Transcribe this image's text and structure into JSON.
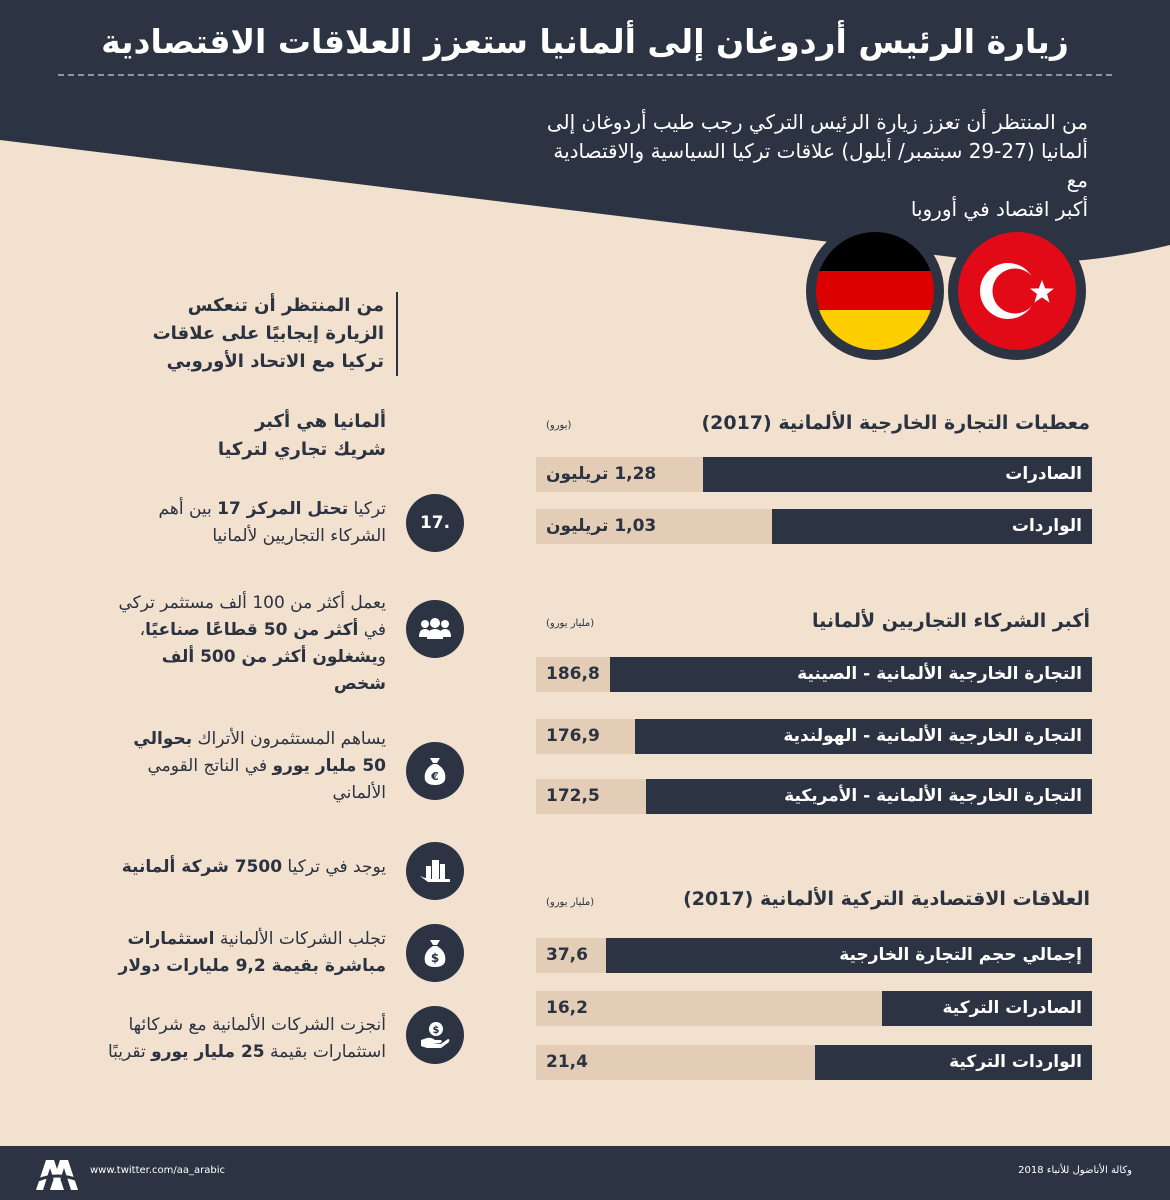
{
  "header": {
    "title": "زيارة الرئيس أردوغان إلى ألمانيا ستعزز العلاقات الاقتصادية",
    "intro_lines": [
      "من المنتظر أن تعزز زيارة الرئيس التركي رجب طيب أردوغان إلى",
      "ألمانيا (27-29 سبتمبر/ أيلول) علاقات تركيا السياسية والاقتصادية مع",
      "أكبر اقتصاد في أوروبا"
    ]
  },
  "flags": {
    "turkey": "turkey-flag-icon",
    "germany": "germany-flag-icon"
  },
  "callout": {
    "lines": [
      "من المنتظر أن تنعكس",
      "الزيارة إيجابيًا على علاقات",
      "تركيا مع الاتحاد الأوروبي"
    ]
  },
  "trade_2017": {
    "title": "معطيات التجارة الخارجية الألمانية (2017)",
    "unit": "(يورو)",
    "bars": [
      {
        "label": "الصادرات",
        "value": "1,28 تريليون",
        "fill": 0.7
      },
      {
        "label": "الواردات",
        "value": "1,03 تريليون",
        "fill": 0.576
      }
    ]
  },
  "partners": {
    "title": "أكبر الشركاء التجاريين لألمانيا",
    "unit": "(مليار يورو)",
    "bars": [
      {
        "label": "التجارة الخارجية الألمانية - الصينية",
        "value": "186,8",
        "fill": 0.867
      },
      {
        "label": "التجارة الخارجية الألمانية - الهولندية",
        "value": "176,9",
        "fill": 0.822
      },
      {
        "label": "التجارة الخارجية الألمانية - الأمريكية",
        "value": "172,5",
        "fill": 0.802
      }
    ]
  },
  "relations": {
    "title": "العلاقات الاقتصادية التركية الألمانية (2017)",
    "unit": "(مليار يورو)",
    "bars": [
      {
        "label": "إجمالي حجم التجارة الخارجية",
        "value": "37,6",
        "fill": 0.874
      },
      {
        "label": "الصادرات التركية",
        "value": "16,2",
        "fill": 0.378
      },
      {
        "label": "الواردات التركية",
        "value": "21,4",
        "fill": 0.498
      }
    ]
  },
  "left_heading": {
    "lines": [
      "ألمانيا هي أكبر",
      "شريك تجاري لتركيا"
    ]
  },
  "facts": {
    "rank_badge": "17.",
    "f1": {
      "a": "تركيا ",
      "b": "تحتل المركز 17",
      "c": " بين أهم الشركاء التجاريين لألمانيا"
    },
    "f2": {
      "a": "يعمل أكثر من 100 ألف مستثمر تركي في ",
      "b": "أكثر من 50 قطاعًا صناعيًا",
      "c": "، و",
      "d": "يشغلون أكثر من 500 ألف شخص"
    },
    "f3": {
      "a": "يساهم المستثمرون الأتراك ",
      "b": "بحوالي 50 مليار يورو",
      "c": " في الناتج القومي الألماني"
    },
    "f4": {
      "a": "يوجد في تركيا ",
      "b": "7500 شركة ألمانية"
    },
    "f5": {
      "a": "تجلب الشركات الألمانية ",
      "b": "استثمارات مباشرة بقيمة 9,2 مليارات دولار"
    },
    "f6": {
      "a": "أنجزت الشركات الألمانية مع شركائها استثمارات بقيمة ",
      "b": "25 مليار يورو",
      "c": " تقريبًا"
    }
  },
  "footer": {
    "url": "www.twitter.com/aa_arabic",
    "credit": "وكالة الأناضول للأنباء 2018"
  }
}
